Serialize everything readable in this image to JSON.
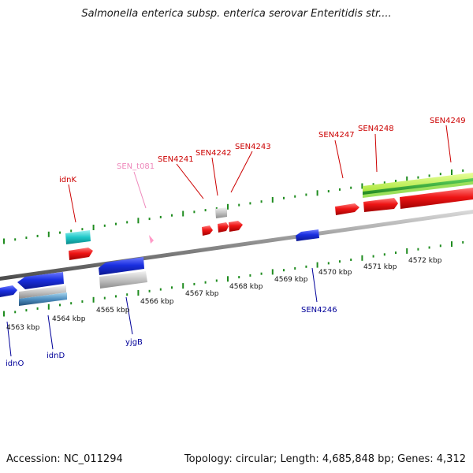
{
  "title": "Salmonella enterica subsp. enterica serovar Enteritidis str....",
  "footer": {
    "accession": "Accession: NC_011294",
    "topology": "Topology: circular; Length: 4,685,848 bp; Genes: 4,312"
  },
  "colors": {
    "forward_gene": "#e8121a",
    "reverse_gene": "#1427d8",
    "tick": "#1f8c1f",
    "backbone": "#8a8a8a",
    "label_forward": "#cc0000",
    "label_reverse": "#000099",
    "label_rna": "#ee88bb"
  },
  "scale_labels": [
    "4563 kbp",
    "4564 kbp",
    "4565 kbp",
    "4566 kbp",
    "4567 kbp",
    "4568 kbp",
    "4569 kbp",
    "4570 kbp",
    "4571 kbp",
    "4572 kbp"
  ],
  "gene_labels_top": [
    "idnK",
    "SEN_t081",
    "SEN4241",
    "SEN4242",
    "SEN4243",
    "SEN4247",
    "SEN4248",
    "SEN4249"
  ],
  "gene_labels_bottom": [
    "idnO",
    "idnD",
    "yjgB",
    "SEN4246"
  ]
}
